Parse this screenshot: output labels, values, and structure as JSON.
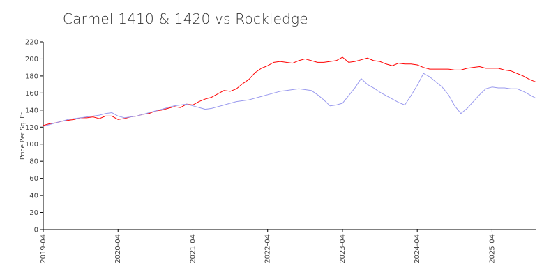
{
  "chart_data": {
    "type": "line",
    "title": "Carmel 1410 & 1420 vs Rockledge",
    "xlabel": "",
    "ylabel": "Price Per Sq. Ft",
    "ylim": [
      0,
      220
    ],
    "yticks": [
      0,
      20,
      40,
      60,
      80,
      100,
      120,
      140,
      160,
      180,
      200,
      220
    ],
    "xlim": [
      "2019-04",
      "2025-11"
    ],
    "xticks": [
      "2019-04",
      "2020-04",
      "2021-04",
      "2022-04",
      "2023-04",
      "2024-04",
      "2025-04"
    ],
    "grid": false,
    "legend": "none",
    "series": [
      {
        "color": "#ff0000",
        "x": [
          "2019-04",
          "2019-05",
          "2019-06",
          "2019-07",
          "2019-08",
          "2019-09",
          "2019-10",
          "2019-11",
          "2019-12",
          "2020-01",
          "2020-02",
          "2020-03",
          "2020-04",
          "2020-05",
          "2020-06",
          "2020-07",
          "2020-08",
          "2020-09",
          "2020-10",
          "2020-11",
          "2020-12",
          "2021-01",
          "2021-02",
          "2021-03",
          "2021-04",
          "2021-05",
          "2021-06",
          "2021-07",
          "2021-08",
          "2021-09",
          "2021-10",
          "2021-11",
          "2021-12",
          "2022-01",
          "2022-02",
          "2022-03",
          "2022-04",
          "2022-05",
          "2022-06",
          "2022-07",
          "2022-08",
          "2022-09",
          "2022-10",
          "2022-11",
          "2022-12",
          "2023-01",
          "2023-02",
          "2023-03",
          "2023-04",
          "2023-05",
          "2023-06",
          "2023-07",
          "2023-08",
          "2023-09",
          "2023-10",
          "2023-11",
          "2023-12",
          "2024-01",
          "2024-02",
          "2024-03",
          "2024-04",
          "2024-05",
          "2024-06",
          "2024-07",
          "2024-08",
          "2024-09",
          "2024-10",
          "2024-11",
          "2024-12",
          "2025-01",
          "2025-02",
          "2025-03",
          "2025-04",
          "2025-05",
          "2025-06",
          "2025-07",
          "2025-08",
          "2025-09",
          "2025-10",
          "2025-11"
        ],
        "values": [
          122,
          124,
          125,
          127,
          128,
          129,
          131,
          131,
          132,
          130,
          133,
          133,
          129,
          130,
          132,
          133,
          135,
          136,
          139,
          140,
          142,
          144,
          143,
          147,
          146,
          150,
          153,
          155,
          159,
          163,
          162,
          165,
          171,
          176,
          184,
          189,
          192,
          196,
          197,
          196,
          195,
          198,
          200,
          198,
          196,
          196,
          197,
          198,
          202,
          196,
          197,
          199,
          201,
          198,
          197,
          194,
          192,
          195,
          194,
          194,
          193,
          190,
          188,
          188,
          188,
          188,
          187,
          187,
          189,
          190,
          191,
          189,
          189,
          189,
          187,
          186,
          183,
          180,
          176,
          173
        ]
      },
      {
        "color": "#9999ee",
        "x": [
          "2019-04",
          "2019-05",
          "2019-06",
          "2019-07",
          "2019-08",
          "2019-09",
          "2019-10",
          "2019-11",
          "2019-12",
          "2020-01",
          "2020-02",
          "2020-03",
          "2020-04",
          "2020-05",
          "2020-06",
          "2020-07",
          "2020-08",
          "2020-09",
          "2020-10",
          "2020-11",
          "2020-12",
          "2021-01",
          "2021-02",
          "2021-03",
          "2021-04",
          "2021-05",
          "2021-06",
          "2021-07",
          "2021-08",
          "2021-09",
          "2021-10",
          "2021-11",
          "2021-12",
          "2022-01",
          "2022-02",
          "2022-03",
          "2022-04",
          "2022-05",
          "2022-06",
          "2022-07",
          "2022-08",
          "2022-09",
          "2022-10",
          "2022-11",
          "2022-12",
          "2023-01",
          "2023-02",
          "2023-03",
          "2023-04",
          "2023-05",
          "2023-06",
          "2023-07",
          "2023-08",
          "2023-09",
          "2023-10",
          "2023-11",
          "2023-12",
          "2024-01",
          "2024-02",
          "2024-03",
          "2024-04",
          "2024-05",
          "2024-06",
          "2024-07",
          "2024-08",
          "2024-09",
          "2024-10",
          "2024-11",
          "2024-12",
          "2025-01",
          "2025-02",
          "2025-03",
          "2025-04",
          "2025-05",
          "2025-06",
          "2025-07",
          "2025-08",
          "2025-09",
          "2025-10",
          "2025-11"
        ],
        "values": [
          121,
          123,
          125,
          127,
          129,
          130,
          131,
          132,
          133,
          134,
          136,
          137,
          133,
          131,
          132,
          133,
          135,
          137,
          139,
          141,
          143,
          145,
          146,
          147,
          145,
          143,
          141,
          142,
          144,
          146,
          148,
          150,
          151,
          152,
          154,
          156,
          158,
          160,
          162,
          163,
          164,
          165,
          164,
          163,
          158,
          152,
          145,
          146,
          148,
          157,
          166,
          177,
          170,
          166,
          161,
          157,
          153,
          149,
          146,
          157,
          169,
          183,
          179,
          173,
          167,
          158,
          145,
          136,
          142,
          150,
          158,
          165,
          167,
          166,
          166,
          165,
          165,
          162,
          158,
          154
        ]
      }
    ]
  }
}
